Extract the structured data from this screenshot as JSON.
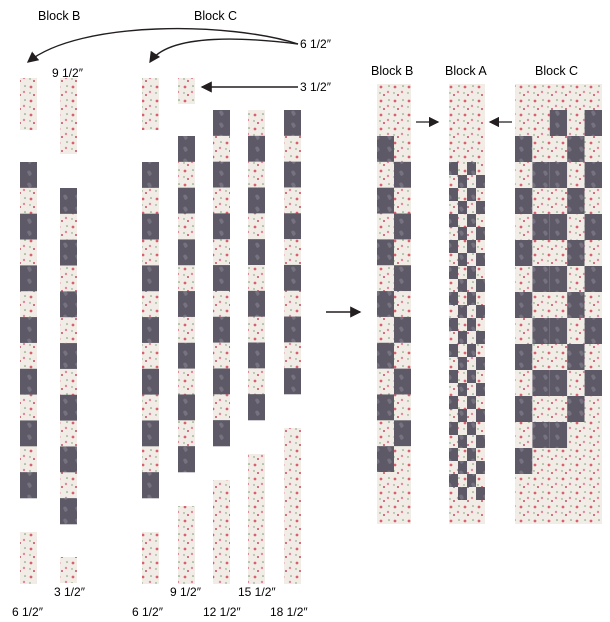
{
  "headers": {
    "block_b_left": "Block B",
    "block_c_left": "Block C",
    "block_b_right": "Block B",
    "block_a_right": "Block A",
    "block_c_right": "Block C"
  },
  "labels": {
    "arrow_top": "6 1/2″",
    "arrow_mid": "3 1/2″",
    "b_top_short": "9 1/2″",
    "b_bottom_short": "3 1/2″",
    "bottom_b_left": "6 1/2″",
    "bottom_c_1": "6 1/2″",
    "bottom_c_2": "9 1/2″",
    "bottom_c_3": "12 1/2″",
    "bottom_c_4": "15 1/2″",
    "bottom_c_5": "18 1/2″"
  },
  "colors": {
    "dark_fabric": "#5d5966",
    "light_fabric": "#f1ede6",
    "rose_print": "#d9606e",
    "leaf_print": "#6d9a6a",
    "line": "#231f20"
  }
}
